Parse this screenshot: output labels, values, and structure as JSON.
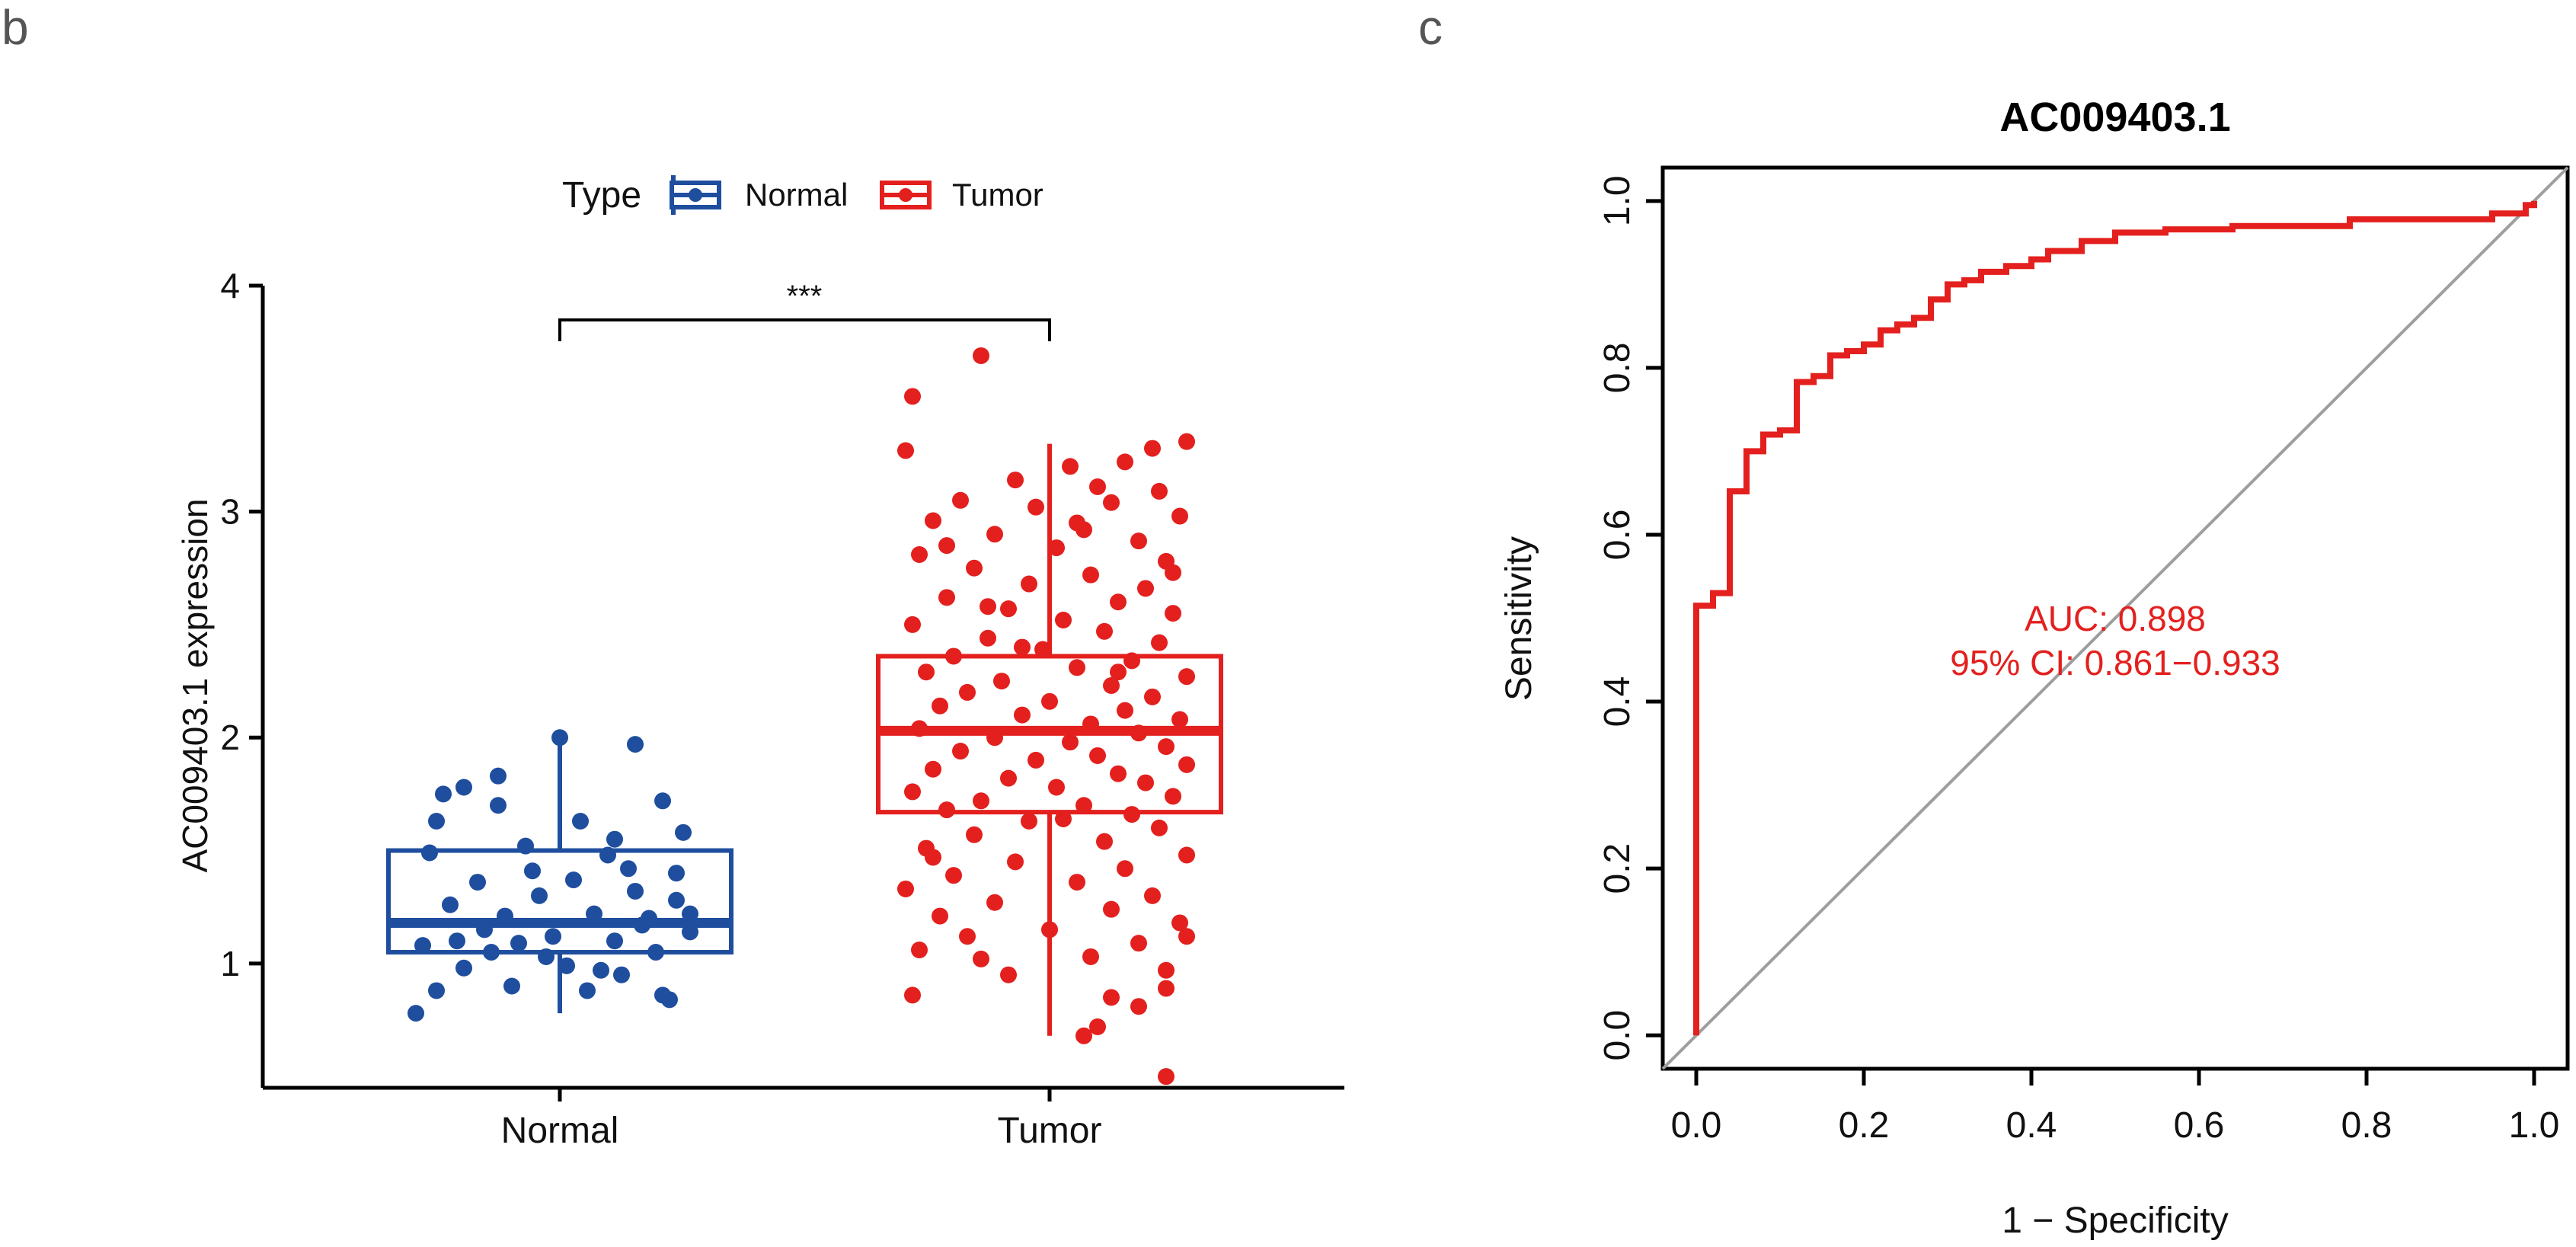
{
  "panels": {
    "b_label": "b",
    "c_label": "c"
  },
  "colors": {
    "normal": "#1f4e9e",
    "tumor": "#e3201e",
    "diagonal": "#9e9e9e",
    "axis": "#000000"
  },
  "chart_data": [
    {
      "type": "box",
      "panel": "b",
      "ylabel": "AC009403.1 expression",
      "ylim": [
        0.45,
        4.0
      ],
      "yticks": [
        "1",
        "2",
        "3",
        "4"
      ],
      "categories": [
        "Normal",
        "Tumor"
      ],
      "legend": {
        "title": "Type",
        "position": "top",
        "entries": [
          "Normal",
          "Tumor"
        ]
      },
      "significance": "***",
      "boxes": [
        {
          "name": "Normal",
          "whisker_low": 0.78,
          "q1": 1.05,
          "median": 1.18,
          "q3": 1.5,
          "whisker_high": 2.0
        },
        {
          "name": "Tumor",
          "whisker_low": 0.68,
          "q1": 1.67,
          "median": 2.03,
          "q3": 2.36,
          "whisker_high": 3.3
        }
      ],
      "points": {
        "Normal": [
          [
            -0.18,
            1.63
          ],
          [
            -0.14,
            1.78
          ],
          [
            -0.09,
            1.83
          ],
          [
            0.0,
            2.0
          ],
          [
            0.11,
            1.97
          ],
          [
            -0.19,
            1.49
          ],
          [
            0.15,
            1.72
          ],
          [
            0.18,
            1.58
          ],
          [
            -0.05,
            1.52
          ],
          [
            0.03,
            1.63
          ],
          [
            0.07,
            1.48
          ],
          [
            -0.12,
            1.36
          ],
          [
            0.1,
            1.42
          ],
          [
            0.02,
            1.37
          ],
          [
            -0.16,
            1.26
          ],
          [
            0.17,
            1.28
          ],
          [
            -0.03,
            1.3
          ],
          [
            -0.08,
            1.21
          ],
          [
            0.05,
            1.22
          ],
          [
            0.13,
            1.2
          ],
          [
            -0.2,
            1.08
          ],
          [
            -0.1,
            1.05
          ],
          [
            0.08,
            1.1
          ],
          [
            0.19,
            1.14
          ],
          [
            -0.06,
            1.09
          ],
          [
            0.14,
            1.05
          ],
          [
            -0.14,
            0.98
          ],
          [
            0.01,
            0.99
          ],
          [
            0.09,
            0.95
          ],
          [
            -0.02,
            1.03
          ],
          [
            -0.18,
            0.88
          ],
          [
            -0.07,
            0.9
          ],
          [
            0.06,
            0.97
          ],
          [
            0.15,
            0.86
          ],
          [
            -0.21,
            0.78
          ],
          [
            0.04,
            0.88
          ],
          [
            0.16,
            0.84
          ],
          [
            -0.11,
            1.15
          ],
          [
            0.12,
            1.17
          ],
          [
            0.19,
            1.22
          ],
          [
            -0.01,
            1.12
          ],
          [
            -0.15,
            1.1
          ],
          [
            0.11,
            1.32
          ],
          [
            -0.04,
            1.41
          ],
          [
            0.17,
            1.4
          ],
          [
            -0.09,
            1.7
          ],
          [
            0.08,
            1.55
          ],
          [
            -0.17,
            1.75
          ]
        ],
        "Tumor": [
          [
            -0.1,
            3.69
          ],
          [
            -0.2,
            3.51
          ],
          [
            -0.21,
            3.27
          ],
          [
            0.2,
            3.31
          ],
          [
            0.15,
            3.28
          ],
          [
            0.11,
            3.22
          ],
          [
            0.03,
            3.2
          ],
          [
            -0.05,
            3.14
          ],
          [
            0.07,
            3.11
          ],
          [
            0.16,
            3.09
          ],
          [
            -0.13,
            3.05
          ],
          [
            -0.02,
            3.02
          ],
          [
            0.09,
            3.04
          ],
          [
            0.19,
            2.98
          ],
          [
            -0.17,
            2.96
          ],
          [
            0.05,
            2.92
          ],
          [
            -0.08,
            2.9
          ],
          [
            0.13,
            2.87
          ],
          [
            0.01,
            2.84
          ],
          [
            -0.19,
            2.81
          ],
          [
            0.17,
            2.78
          ],
          [
            -0.11,
            2.75
          ],
          [
            0.06,
            2.72
          ],
          [
            -0.03,
            2.68
          ],
          [
            0.14,
            2.66
          ],
          [
            -0.15,
            2.62
          ],
          [
            0.1,
            2.6
          ],
          [
            -0.06,
            2.57
          ],
          [
            0.18,
            2.55
          ],
          [
            0.02,
            2.52
          ],
          [
            -0.2,
            2.5
          ],
          [
            0.08,
            2.47
          ],
          [
            -0.09,
            2.44
          ],
          [
            0.16,
            2.42
          ],
          [
            -0.01,
            2.39
          ],
          [
            -0.14,
            2.36
          ],
          [
            0.12,
            2.34
          ],
          [
            0.04,
            2.31
          ],
          [
            -0.18,
            2.29
          ],
          [
            0.2,
            2.27
          ],
          [
            -0.07,
            2.25
          ],
          [
            0.09,
            2.23
          ],
          [
            -0.12,
            2.2
          ],
          [
            0.15,
            2.18
          ],
          [
            0.0,
            2.16
          ],
          [
            -0.16,
            2.14
          ],
          [
            0.11,
            2.12
          ],
          [
            -0.04,
            2.1
          ],
          [
            0.19,
            2.08
          ],
          [
            0.06,
            2.06
          ],
          [
            -0.19,
            2.04
          ],
          [
            0.13,
            2.02
          ],
          [
            -0.08,
            2.0
          ],
          [
            0.03,
            1.98
          ],
          [
            0.17,
            1.96
          ],
          [
            -0.13,
            1.94
          ],
          [
            0.07,
            1.92
          ],
          [
            -0.02,
            1.9
          ],
          [
            0.2,
            1.88
          ],
          [
            -0.17,
            1.86
          ],
          [
            0.1,
            1.84
          ],
          [
            -0.06,
            1.82
          ],
          [
            0.14,
            1.8
          ],
          [
            0.01,
            1.78
          ],
          [
            -0.2,
            1.76
          ],
          [
            0.18,
            1.74
          ],
          [
            -0.1,
            1.72
          ],
          [
            0.05,
            1.7
          ],
          [
            -0.15,
            1.68
          ],
          [
            0.12,
            1.66
          ],
          [
            -0.03,
            1.63
          ],
          [
            0.16,
            1.6
          ],
          [
            -0.11,
            1.57
          ],
          [
            0.08,
            1.54
          ],
          [
            -0.18,
            1.51
          ],
          [
            0.2,
            1.48
          ],
          [
            -0.05,
            1.45
          ],
          [
            0.11,
            1.42
          ],
          [
            -0.14,
            1.39
          ],
          [
            0.04,
            1.36
          ],
          [
            -0.21,
            1.33
          ],
          [
            0.15,
            1.3
          ],
          [
            -0.08,
            1.27
          ],
          [
            0.09,
            1.24
          ],
          [
            -0.16,
            1.21
          ],
          [
            0.19,
            1.18
          ],
          [
            0.0,
            1.15
          ],
          [
            -0.12,
            1.12
          ],
          [
            0.13,
            1.09
          ],
          [
            -0.19,
            1.06
          ],
          [
            0.06,
            1.03
          ],
          [
            -0.1,
            1.02
          ],
          [
            0.17,
            0.97
          ],
          [
            -0.2,
            0.86
          ],
          [
            0.17,
            0.89
          ],
          [
            0.09,
            0.85
          ],
          [
            -0.06,
            0.95
          ],
          [
            0.13,
            0.81
          ],
          [
            0.07,
            0.72
          ],
          [
            0.05,
            0.68
          ],
          [
            0.17,
            0.5
          ],
          [
            0.2,
            1.12
          ],
          [
            -0.17,
            1.47
          ],
          [
            0.02,
            1.64
          ],
          [
            0.1,
            2.29
          ],
          [
            -0.09,
            2.58
          ],
          [
            0.18,
            2.73
          ],
          [
            -0.15,
            2.85
          ],
          [
            0.04,
            2.95
          ],
          [
            -0.04,
            2.4
          ]
        ]
      }
    },
    {
      "type": "line",
      "panel": "c",
      "title": "AC009403.1",
      "xlabel": "1 − Specificity",
      "ylabel": "Sensitivity",
      "xlim": [
        -0.04,
        1.04
      ],
      "ylim": [
        -0.04,
        1.04
      ],
      "xticks": [
        "0.0",
        "0.2",
        "0.4",
        "0.6",
        "0.8",
        "1.0"
      ],
      "yticks": [
        "0.0",
        "0.2",
        "0.4",
        "0.6",
        "0.8",
        "1.0"
      ],
      "grid": false,
      "annotation": {
        "auc": "AUC: 0.898",
        "ci": "95% CI: 0.861−0.933",
        "x": 0.5,
        "y_auc": 0.485,
        "y_ci": 0.432
      },
      "series": [
        {
          "points": [
            [
              0.0,
              0.0
            ],
            [
              0.0,
              0.515
            ],
            [
              0.02,
              0.515
            ],
            [
              0.02,
              0.53
            ],
            [
              0.04,
              0.53
            ],
            [
              0.04,
              0.652
            ],
            [
              0.06,
              0.652
            ],
            [
              0.06,
              0.7
            ],
            [
              0.08,
              0.7
            ],
            [
              0.08,
              0.72
            ],
            [
              0.1,
              0.72
            ],
            [
              0.1,
              0.725
            ],
            [
              0.12,
              0.725
            ],
            [
              0.12,
              0.783
            ],
            [
              0.14,
              0.783
            ],
            [
              0.14,
              0.79
            ],
            [
              0.16,
              0.79
            ],
            [
              0.16,
              0.815
            ],
            [
              0.18,
              0.815
            ],
            [
              0.18,
              0.82
            ],
            [
              0.2,
              0.82
            ],
            [
              0.2,
              0.828
            ],
            [
              0.22,
              0.828
            ],
            [
              0.22,
              0.845
            ],
            [
              0.24,
              0.845
            ],
            [
              0.24,
              0.852
            ],
            [
              0.26,
              0.852
            ],
            [
              0.26,
              0.86
            ],
            [
              0.28,
              0.86
            ],
            [
              0.28,
              0.882
            ],
            [
              0.3,
              0.882
            ],
            [
              0.3,
              0.9
            ],
            [
              0.32,
              0.9
            ],
            [
              0.32,
              0.905
            ],
            [
              0.34,
              0.905
            ],
            [
              0.34,
              0.915
            ],
            [
              0.37,
              0.915
            ],
            [
              0.37,
              0.922
            ],
            [
              0.4,
              0.922
            ],
            [
              0.4,
              0.93
            ],
            [
              0.42,
              0.93
            ],
            [
              0.42,
              0.94
            ],
            [
              0.46,
              0.94
            ],
            [
              0.46,
              0.952
            ],
            [
              0.5,
              0.952
            ],
            [
              0.5,
              0.962
            ],
            [
              0.56,
              0.962
            ],
            [
              0.56,
              0.966
            ],
            [
              0.64,
              0.966
            ],
            [
              0.64,
              0.97
            ],
            [
              0.78,
              0.97
            ],
            [
              0.78,
              0.978
            ],
            [
              0.95,
              0.978
            ],
            [
              0.95,
              0.985
            ],
            [
              0.99,
              0.985
            ],
            [
              0.99,
              0.995
            ],
            [
              1.0,
              0.995
            ],
            [
              1.0,
              1.0
            ]
          ]
        },
        {
          "points": [
            [
              -0.04,
              -0.04
            ],
            [
              1.04,
              1.04
            ]
          ]
        }
      ]
    }
  ]
}
